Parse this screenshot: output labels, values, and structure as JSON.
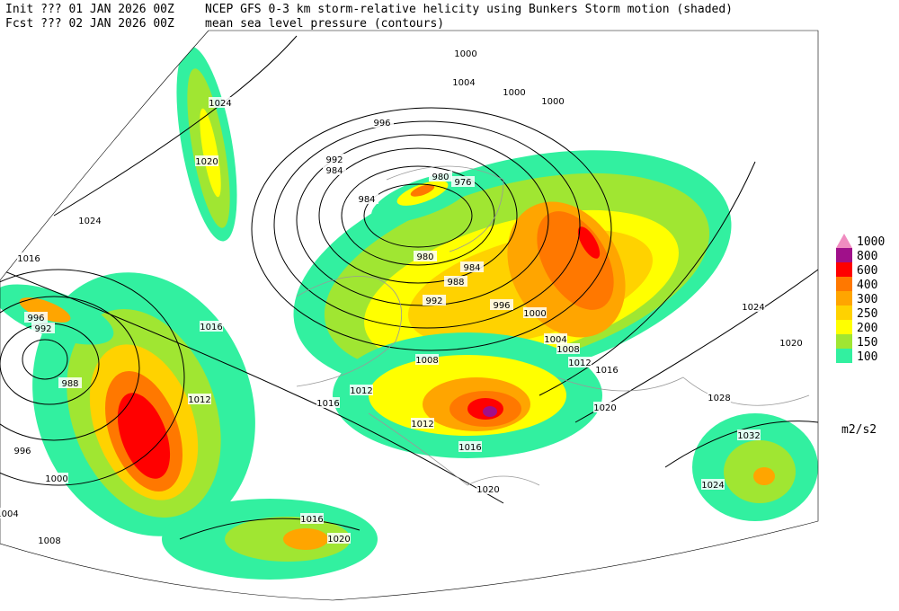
{
  "header": {
    "init": "Init  ??? 01 JAN 2026 00Z",
    "fcst": "Fcst ??? 02 JAN 2026 00Z",
    "title": "NCEP GFS 0-3 km storm-relative helicity using Bunkers Storm motion (shaded)",
    "subtitle": "mean sea level pressure (contours)"
  },
  "legend": {
    "levels": [
      1000,
      800,
      600,
      400,
      300,
      250,
      200,
      150,
      100
    ],
    "colors": [
      "#f08cc0",
      "#a0108a",
      "#ff0000",
      "#ff7800",
      "#ffa500",
      "#ffd200",
      "#ffff00",
      "#a0e632",
      "#32f0a0"
    ],
    "units": "m2/s2"
  },
  "isobar_labels": [
    1024,
    1020,
    1024,
    1016,
    1016,
    996,
    992,
    988,
    996,
    1000,
    1004,
    1008,
    1012,
    1000,
    1004,
    1000,
    1000,
    996,
    992,
    984,
    984,
    980,
    976,
    980,
    984,
    988,
    992,
    996,
    1000,
    1004,
    1008,
    1012,
    1016,
    1020,
    1008,
    1012,
    1016,
    1012,
    1016,
    1020,
    1016,
    1020,
    1024,
    1028,
    1032,
    1024,
    1020
  ]
}
